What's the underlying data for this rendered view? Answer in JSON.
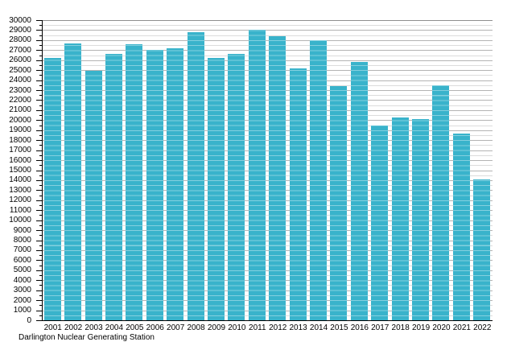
{
  "chart_data": {
    "type": "bar",
    "title": "",
    "caption": "Darlington Nuclear Generating Station",
    "categories": [
      "2001",
      "2002",
      "2003",
      "2004",
      "2005",
      "2006",
      "2007",
      "2008",
      "2009",
      "2010",
      "2011",
      "2012",
      "2013",
      "2014",
      "2015",
      "2016",
      "2017",
      "2018",
      "2019",
      "2020",
      "2021",
      "2022"
    ],
    "values": [
      26200,
      27700,
      24900,
      26600,
      27600,
      27000,
      27200,
      28800,
      26200,
      26600,
      29000,
      28400,
      25200,
      28000,
      23400,
      25800,
      19500,
      20300,
      20100,
      23500,
      18700,
      14100
    ],
    "xlabel": "",
    "ylabel": "",
    "ylim": [
      0,
      30000
    ],
    "y_major_step": 1000,
    "y_minor_step": 500,
    "y_ticks": [
      0,
      1000,
      2000,
      3000,
      4000,
      5000,
      6000,
      7000,
      8000,
      9000,
      10000,
      11000,
      12000,
      13000,
      14000,
      15000,
      16000,
      17000,
      18000,
      19000,
      20000,
      21000,
      22000,
      23000,
      24000,
      25000,
      26000,
      27000,
      28000,
      29000,
      30000
    ],
    "grid": "horizontal, minor every 500, major every 1000",
    "legend": false
  },
  "colors": {
    "bar": "#39B3CB",
    "axis": "#000000",
    "gridline_major": "#b4b4b4",
    "gridline_minor": "#dcdcdc",
    "background": "#ffffff"
  }
}
